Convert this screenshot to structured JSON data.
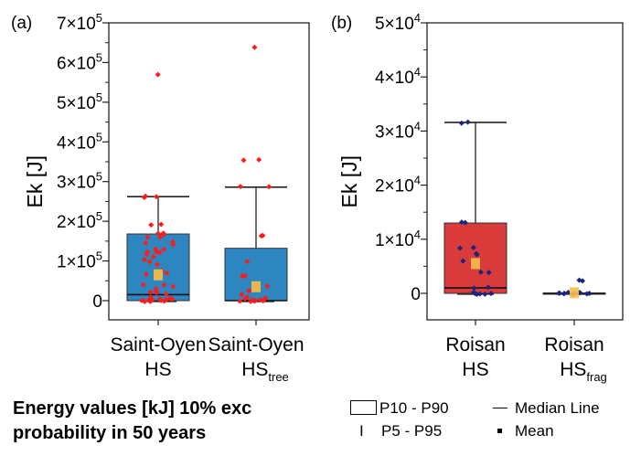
{
  "chart_data": [
    {
      "type": "box",
      "panel_label": "(a)",
      "ylabel": "Ek [J]",
      "ylim": [
        -28000,
        700000
      ],
      "yticks": [
        0,
        100000,
        200000,
        300000,
        400000,
        500000,
        600000,
        700000
      ],
      "ytick_labels": [
        {
          "base": "0",
          "exp": ""
        },
        {
          "base": "1×10",
          "exp": "5"
        },
        {
          "base": "2×10",
          "exp": "5"
        },
        {
          "base": "3×10",
          "exp": "5"
        },
        {
          "base": "4×10",
          "exp": "5"
        },
        {
          "base": "5×10",
          "exp": "5"
        },
        {
          "base": "6×10",
          "exp": "5"
        },
        {
          "base": "7×10",
          "exp": "5"
        }
      ],
      "box_color": "#2e86c1",
      "point_color": "#ff1a1a",
      "categories": [
        {
          "line1": "Saint-Oyen",
          "line2": "HS",
          "sub": ""
        },
        {
          "line1": "Saint-Oyen",
          "line2": "HS",
          "sub": "tree"
        }
      ],
      "series": [
        {
          "name": "Saint-Oyen HS",
          "p10": 0,
          "p90": 168000,
          "p5": 0,
          "p95": 262000,
          "median": 15000,
          "mean": 65000,
          "points": [
            570000,
            262000,
            262000,
            262000,
            192000,
            192000,
            168000,
            168000,
            165000,
            160000,
            158000,
            150000,
            145000,
            140000,
            130000,
            128000,
            125000,
            122000,
            120000,
            118000,
            110000,
            105000,
            100000,
            90000,
            75000,
            70000,
            65000,
            60000,
            40000,
            40000,
            35000,
            30000,
            25000,
            20000,
            20000,
            15000,
            10000,
            8000,
            5000,
            3000,
            2000,
            1000,
            500,
            0,
            0,
            0,
            0,
            0
          ]
        },
        {
          "name": "Saint-Oyen HStree",
          "p10": 0,
          "p90": 132000,
          "p5": 0,
          "p95": 286000,
          "median": 0,
          "mean": 35000,
          "points": [
            640000,
            355000,
            355000,
            286000,
            286000,
            165000,
            165000,
            100000,
            60000,
            60000,
            40000,
            35000,
            30000,
            25000,
            15000,
            8000,
            5000,
            2000,
            0,
            0,
            0,
            0,
            0,
            0,
            0
          ]
        }
      ]
    },
    {
      "type": "box",
      "panel_label": "(b)",
      "ylabel": "Ek [J]",
      "ylim": [
        -5000,
        50000
      ],
      "yticks": [
        0,
        10000,
        20000,
        30000,
        40000,
        50000
      ],
      "ytick_labels": [
        {
          "base": "0",
          "exp": ""
        },
        {
          "base": "1×10",
          "exp": "4"
        },
        {
          "base": "2×10",
          "exp": "4"
        },
        {
          "base": "3×10",
          "exp": "4"
        },
        {
          "base": "4×10",
          "exp": "4"
        },
        {
          "base": "5×10",
          "exp": "4"
        }
      ],
      "box_color": "#d93a3a",
      "point_color": "#1a237e",
      "categories": [
        {
          "line1": "Roisan",
          "line2": "HS",
          "sub": ""
        },
        {
          "line1": "Roisan",
          "line2": "HS",
          "sub": "frag"
        }
      ],
      "series": [
        {
          "name": "Roisan HS",
          "p10": 0,
          "p90": 13000,
          "p5": 0,
          "p95": 31600,
          "median": 1000,
          "mean": 5500,
          "points": [
            31600,
            31600,
            13000,
            13000,
            8400,
            8400,
            7300,
            7300,
            6100,
            3900,
            3900,
            1100,
            1100,
            0,
            0,
            0,
            0,
            0,
            0
          ]
        },
        {
          "name": "Roisan HSfrag",
          "p10": 0,
          "p90": 0,
          "p5": 0,
          "p95": 0,
          "median": 0,
          "mean": 100,
          "points": [
            2400,
            2400,
            0,
            0,
            0,
            0,
            0,
            0,
            0,
            0,
            0,
            0,
            0
          ]
        }
      ]
    }
  ],
  "caption": {
    "line1": "Energy values [kJ] 10% exc",
    "line2": "probability in 50 years"
  },
  "legend": {
    "box": "P10 - P90",
    "whisker": "P5 - P95",
    "median": "Median Line",
    "mean": "Mean"
  },
  "mean_color": "#f5c04a"
}
